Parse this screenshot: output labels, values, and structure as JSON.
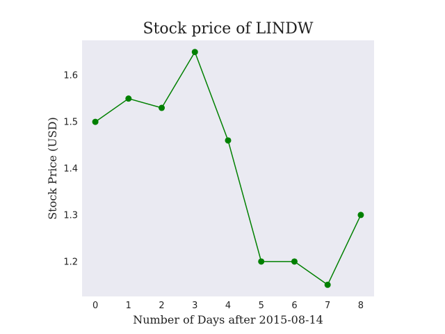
{
  "chart_data": {
    "type": "line",
    "title": "Stock price of LINDW",
    "xlabel": "Number of Days after 2015-08-14",
    "ylabel": "Stock Price (USD)",
    "x": [
      0,
      1,
      2,
      3,
      4,
      5,
      6,
      7,
      8
    ],
    "series": [
      {
        "values": [
          1.5,
          1.55,
          1.53,
          1.65,
          1.46,
          1.2,
          1.2,
          1.15,
          1.3
        ]
      }
    ],
    "xlim": [
      -0.4,
      8.4
    ],
    "ylim": [
      1.125,
      1.675
    ],
    "xticks": [
      "0",
      "1",
      "2",
      "3",
      "4",
      "5",
      "6",
      "7",
      "8"
    ],
    "yticks": [
      "1.2",
      "1.3",
      "1.4",
      "1.5",
      "1.6"
    ],
    "ytick_values": [
      1.2,
      1.3,
      1.4,
      1.5,
      1.6
    ],
    "grid": false,
    "line_color": "#008000",
    "plot_background": "#EAEAF2",
    "marker": "circle"
  }
}
